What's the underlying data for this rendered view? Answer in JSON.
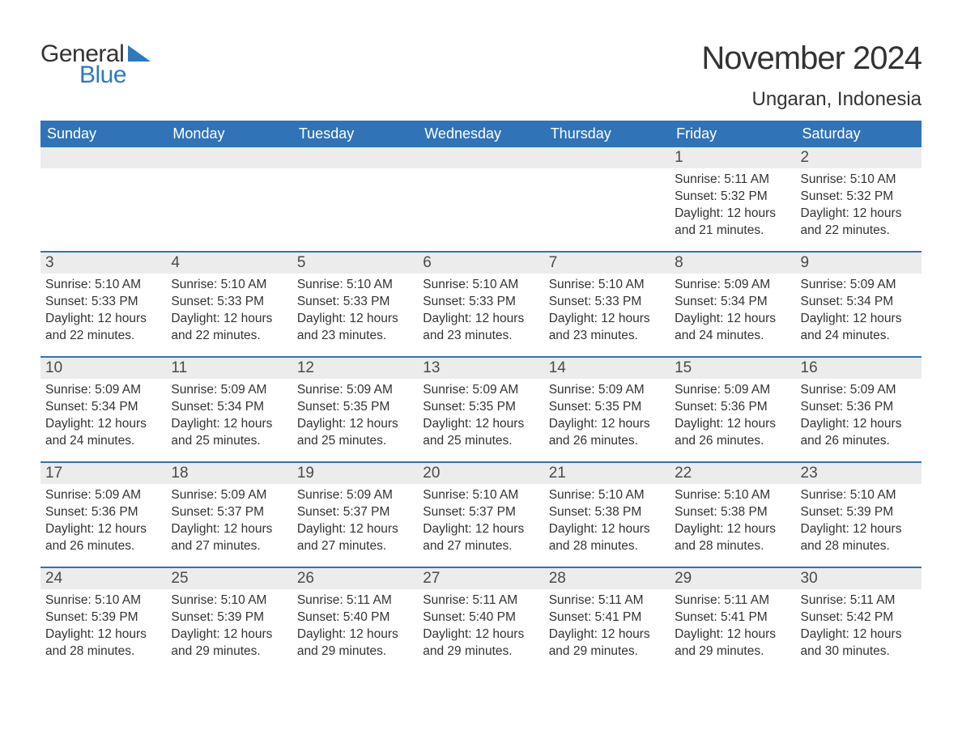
{
  "brand": {
    "word1": "General",
    "word2": "Blue",
    "triangle_color": "#2f79bd"
  },
  "title": "November 2024",
  "location": "Ungaran, Indonesia",
  "colors": {
    "header_bg": "#3173b7",
    "header_text": "#ffffff",
    "daynum_bg": "#ececec",
    "body_text": "#333333",
    "rule": "#3173b7",
    "page_bg": "#ffffff"
  },
  "fonts": {
    "title_pt": 40,
    "location_pt": 24,
    "dayhead_pt": 18,
    "daynum_pt": 19,
    "body_pt": 15.5
  },
  "day_labels": [
    "Sunday",
    "Monday",
    "Tuesday",
    "Wednesday",
    "Thursday",
    "Friday",
    "Saturday"
  ],
  "weeks": [
    [
      {
        "day": null
      },
      {
        "day": null
      },
      {
        "day": null
      },
      {
        "day": null
      },
      {
        "day": null
      },
      {
        "day": 1,
        "sunrise": "5:11 AM",
        "sunset": "5:32 PM",
        "daylight": "12 hours and 21 minutes."
      },
      {
        "day": 2,
        "sunrise": "5:10 AM",
        "sunset": "5:32 PM",
        "daylight": "12 hours and 22 minutes."
      }
    ],
    [
      {
        "day": 3,
        "sunrise": "5:10 AM",
        "sunset": "5:33 PM",
        "daylight": "12 hours and 22 minutes."
      },
      {
        "day": 4,
        "sunrise": "5:10 AM",
        "sunset": "5:33 PM",
        "daylight": "12 hours and 22 minutes."
      },
      {
        "day": 5,
        "sunrise": "5:10 AM",
        "sunset": "5:33 PM",
        "daylight": "12 hours and 23 minutes."
      },
      {
        "day": 6,
        "sunrise": "5:10 AM",
        "sunset": "5:33 PM",
        "daylight": "12 hours and 23 minutes."
      },
      {
        "day": 7,
        "sunrise": "5:10 AM",
        "sunset": "5:33 PM",
        "daylight": "12 hours and 23 minutes."
      },
      {
        "day": 8,
        "sunrise": "5:09 AM",
        "sunset": "5:34 PM",
        "daylight": "12 hours and 24 minutes."
      },
      {
        "day": 9,
        "sunrise": "5:09 AM",
        "sunset": "5:34 PM",
        "daylight": "12 hours and 24 minutes."
      }
    ],
    [
      {
        "day": 10,
        "sunrise": "5:09 AM",
        "sunset": "5:34 PM",
        "daylight": "12 hours and 24 minutes."
      },
      {
        "day": 11,
        "sunrise": "5:09 AM",
        "sunset": "5:34 PM",
        "daylight": "12 hours and 25 minutes."
      },
      {
        "day": 12,
        "sunrise": "5:09 AM",
        "sunset": "5:35 PM",
        "daylight": "12 hours and 25 minutes."
      },
      {
        "day": 13,
        "sunrise": "5:09 AM",
        "sunset": "5:35 PM",
        "daylight": "12 hours and 25 minutes."
      },
      {
        "day": 14,
        "sunrise": "5:09 AM",
        "sunset": "5:35 PM",
        "daylight": "12 hours and 26 minutes."
      },
      {
        "day": 15,
        "sunrise": "5:09 AM",
        "sunset": "5:36 PM",
        "daylight": "12 hours and 26 minutes."
      },
      {
        "day": 16,
        "sunrise": "5:09 AM",
        "sunset": "5:36 PM",
        "daylight": "12 hours and 26 minutes."
      }
    ],
    [
      {
        "day": 17,
        "sunrise": "5:09 AM",
        "sunset": "5:36 PM",
        "daylight": "12 hours and 26 minutes."
      },
      {
        "day": 18,
        "sunrise": "5:09 AM",
        "sunset": "5:37 PM",
        "daylight": "12 hours and 27 minutes."
      },
      {
        "day": 19,
        "sunrise": "5:09 AM",
        "sunset": "5:37 PM",
        "daylight": "12 hours and 27 minutes."
      },
      {
        "day": 20,
        "sunrise": "5:10 AM",
        "sunset": "5:37 PM",
        "daylight": "12 hours and 27 minutes."
      },
      {
        "day": 21,
        "sunrise": "5:10 AM",
        "sunset": "5:38 PM",
        "daylight": "12 hours and 28 minutes."
      },
      {
        "day": 22,
        "sunrise": "5:10 AM",
        "sunset": "5:38 PM",
        "daylight": "12 hours and 28 minutes."
      },
      {
        "day": 23,
        "sunrise": "5:10 AM",
        "sunset": "5:39 PM",
        "daylight": "12 hours and 28 minutes."
      }
    ],
    [
      {
        "day": 24,
        "sunrise": "5:10 AM",
        "sunset": "5:39 PM",
        "daylight": "12 hours and 28 minutes."
      },
      {
        "day": 25,
        "sunrise": "5:10 AM",
        "sunset": "5:39 PM",
        "daylight": "12 hours and 29 minutes."
      },
      {
        "day": 26,
        "sunrise": "5:11 AM",
        "sunset": "5:40 PM",
        "daylight": "12 hours and 29 minutes."
      },
      {
        "day": 27,
        "sunrise": "5:11 AM",
        "sunset": "5:40 PM",
        "daylight": "12 hours and 29 minutes."
      },
      {
        "day": 28,
        "sunrise": "5:11 AM",
        "sunset": "5:41 PM",
        "daylight": "12 hours and 29 minutes."
      },
      {
        "day": 29,
        "sunrise": "5:11 AM",
        "sunset": "5:41 PM",
        "daylight": "12 hours and 29 minutes."
      },
      {
        "day": 30,
        "sunrise": "5:11 AM",
        "sunset": "5:42 PM",
        "daylight": "12 hours and 30 minutes."
      }
    ]
  ],
  "field_labels": {
    "sunrise": "Sunrise: ",
    "sunset": "Sunset: ",
    "daylight": "Daylight: "
  }
}
